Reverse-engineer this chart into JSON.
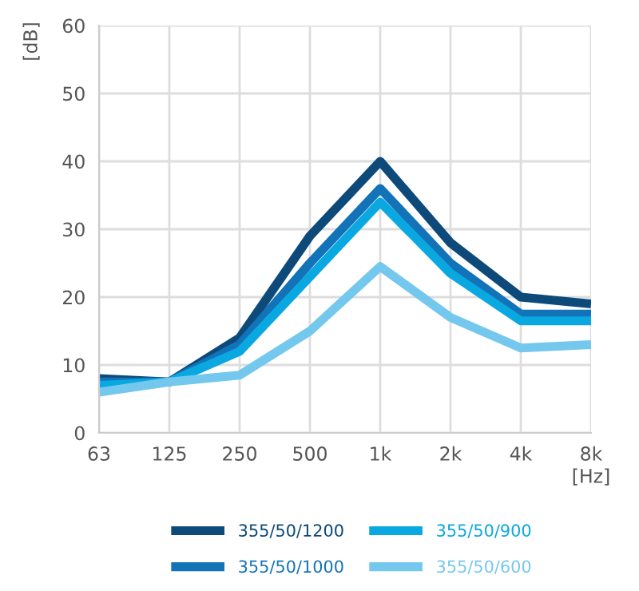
{
  "chart_data": {
    "type": "line",
    "xlabel": "[Hz]",
    "ylabel": "[dB]",
    "categories": [
      "63",
      "125",
      "250",
      "500",
      "1k",
      "2k",
      "4k",
      "8k"
    ],
    "series": [
      {
        "name": "355/50/1200",
        "color": "#0d4a7a",
        "values": [
          8,
          7.5,
          14,
          29,
          40,
          28,
          20,
          19
        ]
      },
      {
        "name": "355/50/1000",
        "color": "#1273b8",
        "values": [
          7.5,
          7.5,
          13,
          25,
          36,
          25,
          17.5,
          17.5
        ]
      },
      {
        "name": "355/50/900",
        "color": "#0aa8e0",
        "values": [
          7,
          7.5,
          12,
          23,
          34,
          23.5,
          16.5,
          16.5
        ]
      },
      {
        "name": "355/50/600",
        "color": "#74c8ee",
        "values": [
          6,
          7.5,
          8.5,
          15,
          24.5,
          17,
          12.5,
          13
        ]
      }
    ],
    "ylim": [
      0,
      60
    ],
    "yticks": [
      0,
      10,
      20,
      30,
      40,
      50,
      60
    ],
    "grid": true,
    "legend": "bottom",
    "marker": "none",
    "line_style": "solid"
  }
}
